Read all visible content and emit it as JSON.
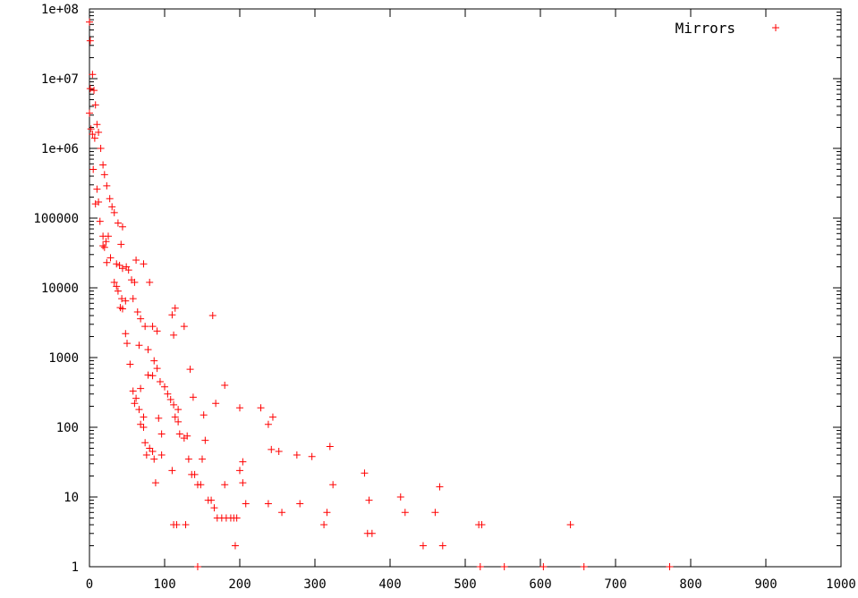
{
  "chart_data": {
    "type": "scatter",
    "title": "",
    "xlabel": "",
    "ylabel": "",
    "xlim": [
      0,
      1000
    ],
    "ylim": [
      1,
      100000000
    ],
    "y_scale": "log",
    "grid": false,
    "legend_position": "top-right",
    "x_ticks": [
      0,
      100,
      200,
      300,
      400,
      500,
      600,
      700,
      800,
      900,
      1000
    ],
    "x_tick_labels": [
      "0",
      "100",
      "200",
      "300",
      "400",
      "500",
      "600",
      "700",
      "800",
      "900",
      "1000"
    ],
    "y_ticks": [
      1,
      10,
      100,
      1000,
      10000,
      100000,
      1000000,
      10000000,
      100000000
    ],
    "y_tick_labels": [
      "1",
      "10",
      "100",
      "1000",
      "10000",
      "100000",
      "1e+06",
      "1e+07",
      "1e+08"
    ],
    "series": [
      {
        "name": "Mirrors",
        "color": "#ff0000",
        "marker": "plus",
        "points": [
          [
            0,
            65000000
          ],
          [
            1,
            35000000
          ],
          [
            4,
            11500000
          ],
          [
            1,
            7200000
          ],
          [
            6,
            6800000
          ],
          [
            0,
            3200000
          ],
          [
            8,
            4200000
          ],
          [
            10,
            2200000
          ],
          [
            2,
            1900000
          ],
          [
            4,
            1600000
          ],
          [
            7,
            1400000
          ],
          [
            12,
            1700000
          ],
          [
            15,
            1000000
          ],
          [
            18,
            580000
          ],
          [
            5,
            500000
          ],
          [
            20,
            420000
          ],
          [
            23,
            290000
          ],
          [
            10,
            260000
          ],
          [
            27,
            190000
          ],
          [
            12,
            170000
          ],
          [
            8,
            160000
          ],
          [
            30,
            145000
          ],
          [
            33,
            120000
          ],
          [
            14,
            90000
          ],
          [
            38,
            85000
          ],
          [
            44,
            75000
          ],
          [
            18,
            55000
          ],
          [
            25,
            55000
          ],
          [
            22,
            46000
          ],
          [
            18,
            40000
          ],
          [
            20,
            38000
          ],
          [
            42,
            42000
          ],
          [
            28,
            27000
          ],
          [
            23,
            23000
          ],
          [
            36,
            22000
          ],
          [
            40,
            21000
          ],
          [
            44,
            19000
          ],
          [
            49,
            20000
          ],
          [
            52,
            18000
          ],
          [
            62,
            25000
          ],
          [
            72,
            22000
          ],
          [
            33,
            12000
          ],
          [
            36,
            10500
          ],
          [
            56,
            13000
          ],
          [
            60,
            12000
          ],
          [
            80,
            12000
          ],
          [
            38,
            9000
          ],
          [
            43,
            7000
          ],
          [
            48,
            6500
          ],
          [
            58,
            7000
          ],
          [
            41,
            5200
          ],
          [
            44,
            5000
          ],
          [
            64,
            4500
          ],
          [
            68,
            3600
          ],
          [
            74,
            2800
          ],
          [
            84,
            2800
          ],
          [
            90,
            2400
          ],
          [
            114,
            5100
          ],
          [
            110,
            4100
          ],
          [
            164,
            4000
          ],
          [
            126,
            2800
          ],
          [
            48,
            2200
          ],
          [
            50,
            1600
          ],
          [
            66,
            1500
          ],
          [
            78,
            1300
          ],
          [
            112,
            2100
          ],
          [
            86,
            900
          ],
          [
            90,
            700
          ],
          [
            134,
            680
          ],
          [
            54,
            800
          ],
          [
            78,
            560
          ],
          [
            84,
            550
          ],
          [
            94,
            450
          ],
          [
            100,
            380
          ],
          [
            104,
            300
          ],
          [
            108,
            250
          ],
          [
            112,
            210
          ],
          [
            180,
            400
          ],
          [
            58,
            330
          ],
          [
            62,
            260
          ],
          [
            68,
            360
          ],
          [
            138,
            270
          ],
          [
            168,
            220
          ],
          [
            200,
            190
          ],
          [
            228,
            190
          ],
          [
            60,
            220
          ],
          [
            66,
            180
          ],
          [
            72,
            140
          ],
          [
            92,
            135
          ],
          [
            114,
            140
          ],
          [
            118,
            180
          ],
          [
            118,
            120
          ],
          [
            152,
            150
          ],
          [
            244,
            140
          ],
          [
            238,
            110
          ],
          [
            68,
            110
          ],
          [
            72,
            100
          ],
          [
            96,
            80
          ],
          [
            120,
            80
          ],
          [
            126,
            70
          ],
          [
            130,
            75
          ],
          [
            74,
            60
          ],
          [
            80,
            50
          ],
          [
            84,
            45
          ],
          [
            76,
            40
          ],
          [
            96,
            40
          ],
          [
            154,
            65
          ],
          [
            86,
            35
          ],
          [
            132,
            35
          ],
          [
            150,
            35
          ],
          [
            242,
            48
          ],
          [
            252,
            45
          ],
          [
            276,
            40
          ],
          [
            296,
            38
          ],
          [
            320,
            53
          ],
          [
            204,
            32
          ],
          [
            110,
            24
          ],
          [
            136,
            21
          ],
          [
            140,
            21
          ],
          [
            200,
            24
          ],
          [
            366,
            22
          ],
          [
            88,
            16
          ],
          [
            144,
            15
          ],
          [
            148,
            15
          ],
          [
            180,
            15
          ],
          [
            204,
            16
          ],
          [
            324,
            15
          ],
          [
            466,
            14
          ],
          [
            158,
            9
          ],
          [
            162,
            9
          ],
          [
            372,
            9
          ],
          [
            414,
            10
          ],
          [
            208,
            8
          ],
          [
            238,
            8
          ],
          [
            280,
            8
          ],
          [
            166,
            7
          ],
          [
            256,
            6
          ],
          [
            316,
            6
          ],
          [
            420,
            6
          ],
          [
            460,
            6
          ],
          [
            170,
            5
          ],
          [
            176,
            5
          ],
          [
            182,
            5
          ],
          [
            188,
            5
          ],
          [
            192,
            5
          ],
          [
            196,
            5
          ],
          [
            112,
            4
          ],
          [
            116,
            4
          ],
          [
            128,
            4
          ],
          [
            312,
            4
          ],
          [
            518,
            4
          ],
          [
            522,
            4
          ],
          [
            640,
            4
          ],
          [
            370,
            3
          ],
          [
            376,
            3
          ],
          [
            194,
            2
          ],
          [
            444,
            2
          ],
          [
            470,
            2
          ],
          [
            144,
            1
          ],
          [
            520,
            1
          ],
          [
            552,
            1
          ],
          [
            604,
            1
          ],
          [
            658,
            1
          ],
          [
            772,
            1
          ]
        ]
      }
    ]
  }
}
